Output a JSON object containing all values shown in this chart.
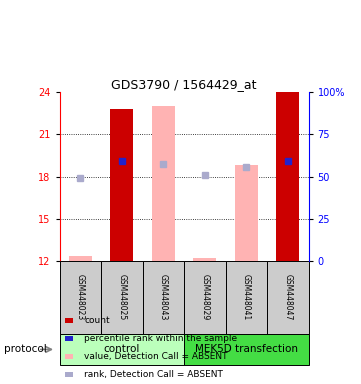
{
  "title": "GDS3790 / 1564429_at",
  "samples": [
    "GSM448023",
    "GSM448025",
    "GSM448043",
    "GSM448029",
    "GSM448041",
    "GSM448047"
  ],
  "ylim": [
    12,
    24
  ],
  "yticks_left": [
    12,
    15,
    18,
    21,
    24
  ],
  "yticks_right_labels": [
    "0",
    "25",
    "50",
    "75",
    "100%"
  ],
  "yticks_right_pos": [
    12,
    15,
    18,
    21,
    24
  ],
  "bar_data": [
    {
      "count_absent_val": 12.35,
      "rank_val": 17.9,
      "rank_absent": true,
      "count_absent": true
    },
    {
      "count_val": 22.8,
      "rank_val": 19.1,
      "rank_absent": false,
      "count_absent": false
    },
    {
      "count_absent_val": 23.0,
      "rank_val": 18.9,
      "rank_absent": true,
      "count_absent": true
    },
    {
      "count_absent_val": 12.2,
      "rank_val": 18.1,
      "rank_absent": true,
      "count_absent": true
    },
    {
      "count_absent_val": 18.8,
      "rank_val": 18.65,
      "rank_absent": true,
      "count_absent": true
    },
    {
      "count_val": 24.0,
      "rank_val": 19.1,
      "rank_absent": false,
      "count_absent": false
    }
  ],
  "color_count_present": "#cc0000",
  "color_count_absent": "#ffb3b3",
  "color_rank_present": "#2222cc",
  "color_rank_absent": "#aaaacc",
  "bar_width": 0.55,
  "group_bg_light": "#bbffbb",
  "group_bg_dark": "#44dd44",
  "sample_box_color": "#cccccc",
  "legend_items": [
    {
      "color": "#cc0000",
      "label": "count"
    },
    {
      "color": "#2222cc",
      "label": "percentile rank within the sample"
    },
    {
      "color": "#ffb3b3",
      "label": "value, Detection Call = ABSENT"
    },
    {
      "color": "#aaaacc",
      "label": "rank, Detection Call = ABSENT"
    }
  ]
}
